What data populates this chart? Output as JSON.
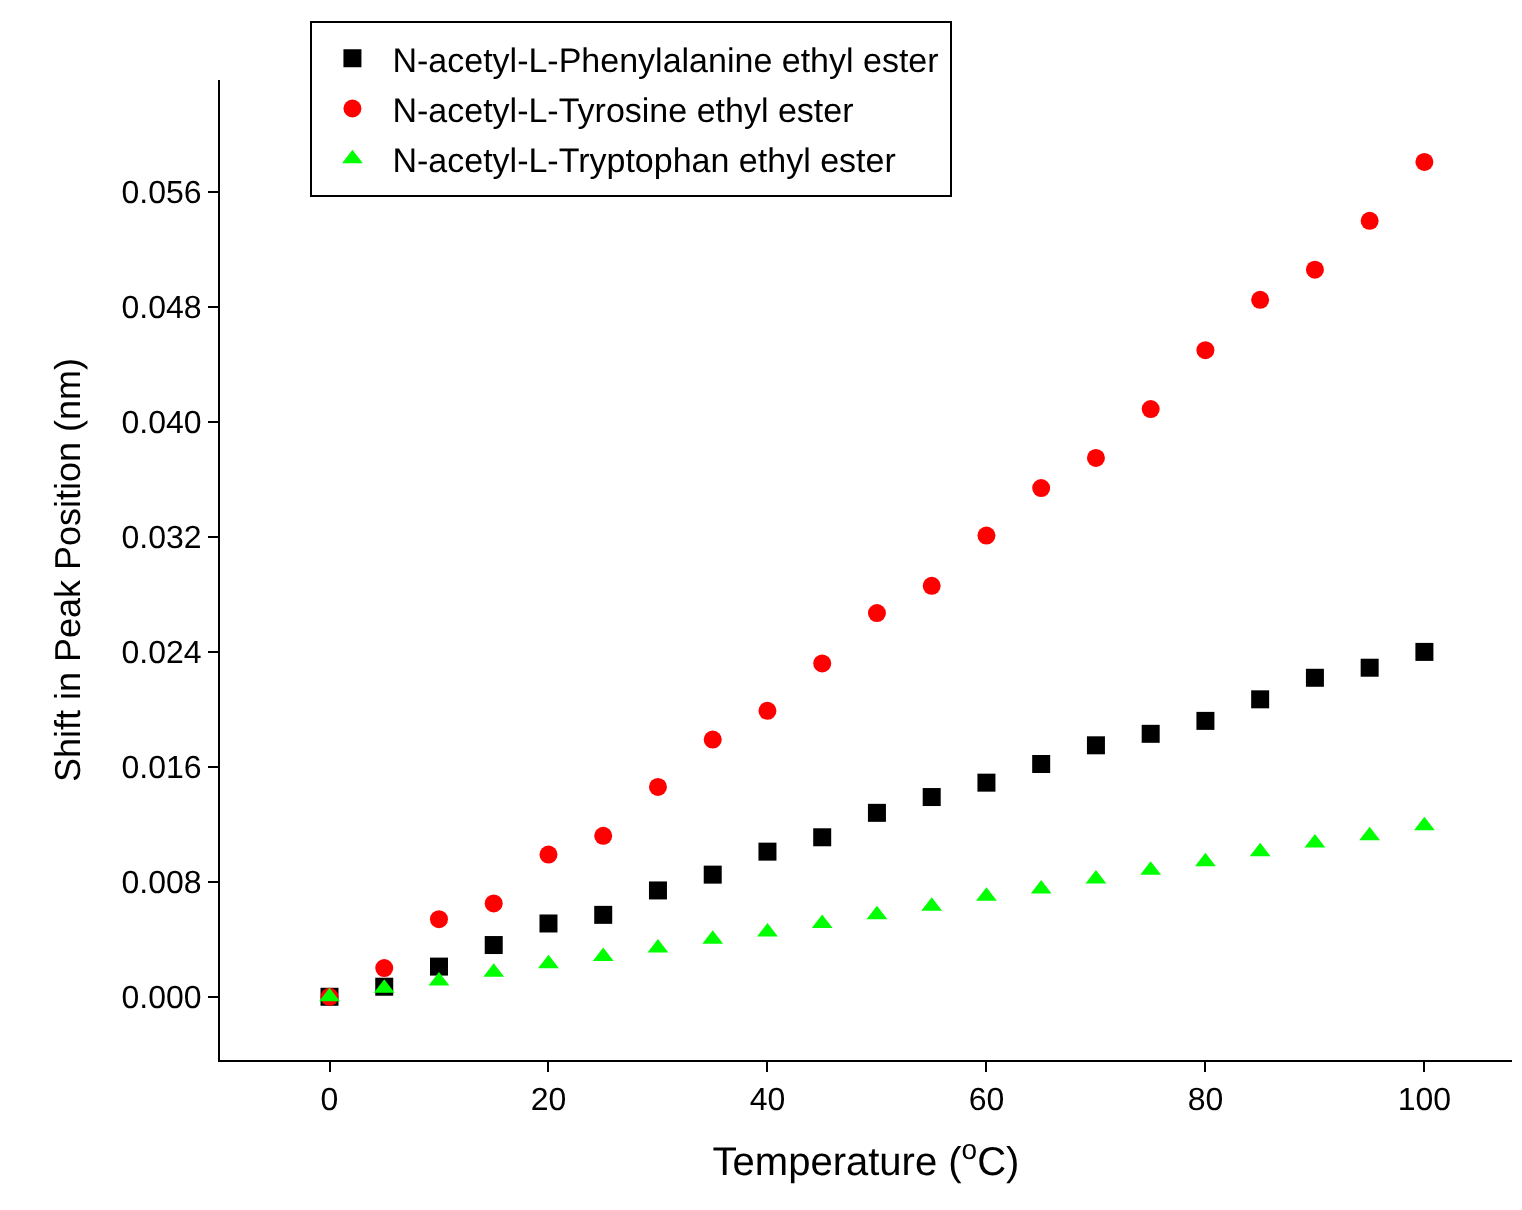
{
  "chart_data": {
    "type": "scatter",
    "xlabel": "Temperature ($^{o}$C)",
    "ylabel": "Shift in Peak Position (nm)",
    "x": [
      0,
      5,
      10,
      15,
      20,
      25,
      30,
      35,
      40,
      45,
      50,
      55,
      60,
      65,
      70,
      75,
      80,
      85,
      90,
      95,
      100
    ],
    "series": [
      {
        "name": "N-acetyl-L-Phenylalanine ethyl ester",
        "color": "#000000",
        "marker": "square",
        "values": [
          0,
          0.0007,
          0.0021,
          0.0036,
          0.0051,
          0.0057,
          0.0074,
          0.0085,
          0.0101,
          0.0111,
          0.0128,
          0.0139,
          0.0149,
          0.0162,
          0.0175,
          0.0183,
          0.0192,
          0.0207,
          0.0222,
          0.0229,
          0.024
        ]
      },
      {
        "name": "N-acetyl-L-Tyrosine ethyl ester",
        "color": "#ff0000",
        "marker": "circle",
        "values": [
          0,
          0.002,
          0.0054,
          0.0065,
          0.0099,
          0.0112,
          0.0146,
          0.0179,
          0.0199,
          0.0232,
          0.0267,
          0.0286,
          0.0321,
          0.0354,
          0.0375,
          0.0409,
          0.045,
          0.0485,
          0.0506,
          0.054,
          0.0581
        ]
      },
      {
        "name": "N-acetyl-L-Tryptophan ethyl ester",
        "color": "#00ff00",
        "marker": "triangle",
        "values": [
          0,
          0.0006,
          0.0011,
          0.0017,
          0.0023,
          0.0028,
          0.0034,
          0.004,
          0.0045,
          0.0051,
          0.0057,
          0.0063,
          0.007,
          0.0075,
          0.0082,
          0.0088,
          0.0094,
          0.0101,
          0.0107,
          0.0112,
          0.0119
        ]
      }
    ],
    "xlim": [
      -10,
      108
    ],
    "xticks": [
      0,
      20,
      40,
      60,
      80,
      100
    ],
    "ylim": [
      -0.0044,
      0.0638
    ],
    "yticks": [
      {
        "value": 0,
        "label": "0.000"
      },
      {
        "value": 0.008,
        "label": "0.008"
      },
      {
        "value": 0.016,
        "label": "0.016"
      },
      {
        "value": 0.024,
        "label": "0.024"
      },
      {
        "value": 0.032,
        "label": "0.032"
      },
      {
        "value": 0.04,
        "label": "0.040"
      },
      {
        "value": 0.048,
        "label": "0.048"
      },
      {
        "value": 0.056,
        "label": "0.056"
      }
    ],
    "legend": "top left"
  }
}
